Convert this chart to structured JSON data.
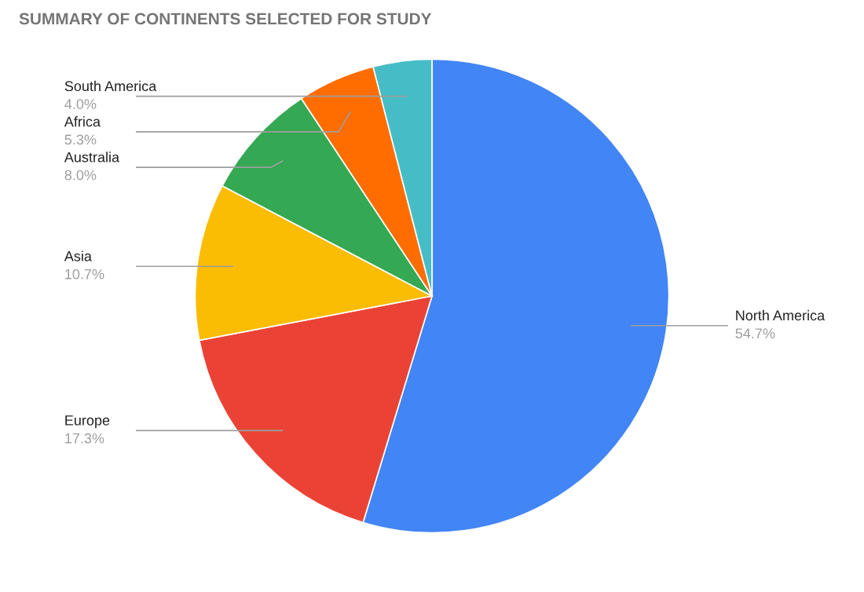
{
  "chart_data": {
    "type": "pie",
    "title": "SUMMARY OF CONTINENTS SELECTED FOR STUDY",
    "categories": [
      "North America",
      "Europe",
      "Asia",
      "Australia",
      "Africa",
      "South America"
    ],
    "values": [
      54.7,
      17.3,
      10.7,
      8.0,
      5.3,
      4.0
    ],
    "value_labels": [
      "54.7%",
      "17.3%",
      "10.7%",
      "8.0%",
      "5.3%",
      "4.0%"
    ],
    "colors": [
      "#4285f4",
      "#ea4335",
      "#fbbc04",
      "#34a853",
      "#ff6d01",
      "#46bdc6"
    ]
  }
}
